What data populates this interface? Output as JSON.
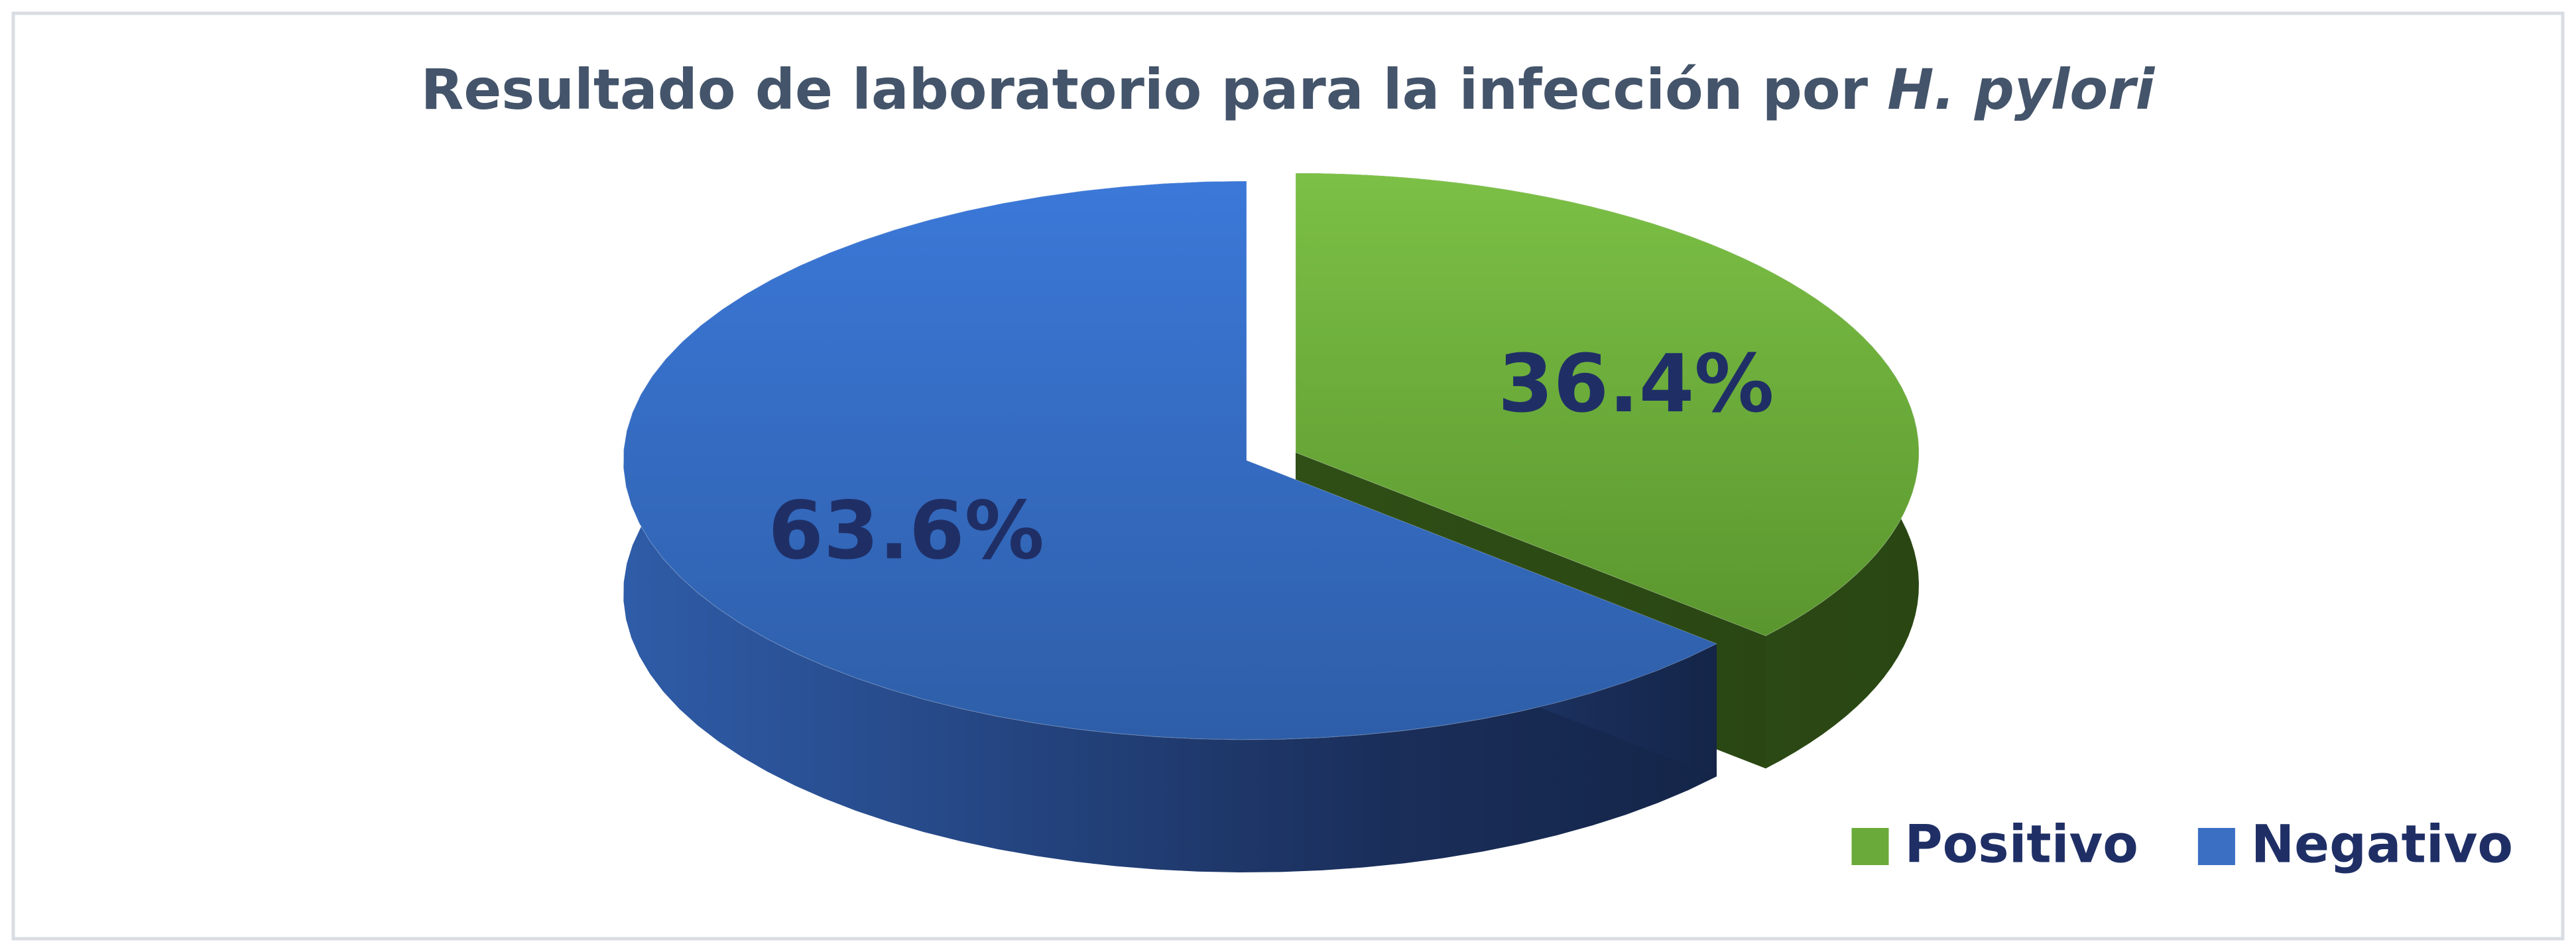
{
  "chart_data": {
    "type": "pie",
    "title": [
      "Resultado de laboratorio para la infección por",
      "H. pylori"
    ],
    "categories": [
      "Positivo",
      "Negativo"
    ],
    "values": [
      36.4,
      63.6
    ],
    "value_labels": [
      "36.4%",
      "63.6%"
    ],
    "colors": [
      "#6aaa3a",
      "#3a6fc4"
    ],
    "legend": "bottom-right"
  }
}
